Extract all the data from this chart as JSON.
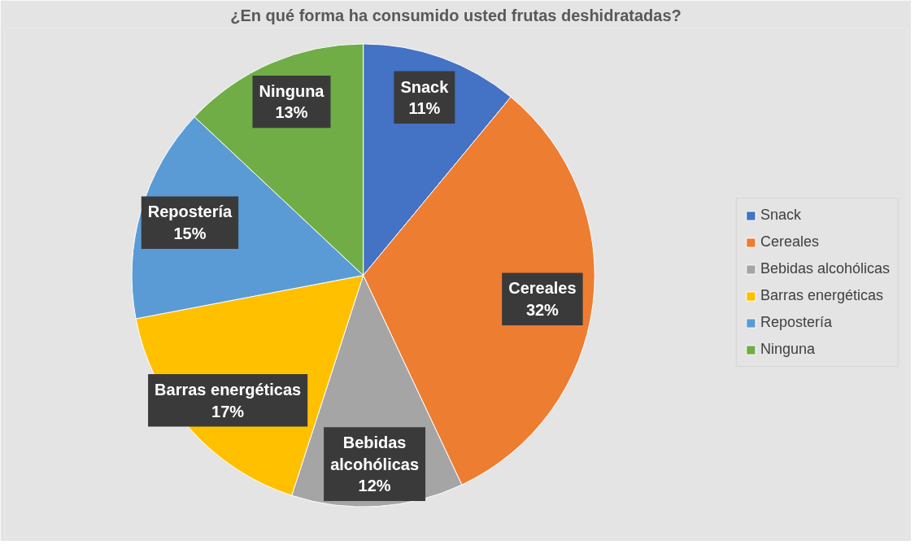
{
  "chart_data": {
    "type": "pie",
    "title": "¿En qué forma ha consumido usted frutas deshidratadas?",
    "categories": [
      "Snack",
      "Cereales",
      "Bebidas alcohólicas",
      "Barras energéticas",
      "Repostería",
      "Ninguna"
    ],
    "values": [
      11,
      32,
      12,
      17,
      15,
      13
    ],
    "colors": [
      "#4472c4",
      "#ed7d31",
      "#a5a5a5",
      "#ffc000",
      "#5b9bd5",
      "#70ad47"
    ],
    "value_labels": [
      "11%",
      "32%",
      "12%",
      "17%",
      "15%",
      "13%"
    ],
    "legend": "right"
  }
}
